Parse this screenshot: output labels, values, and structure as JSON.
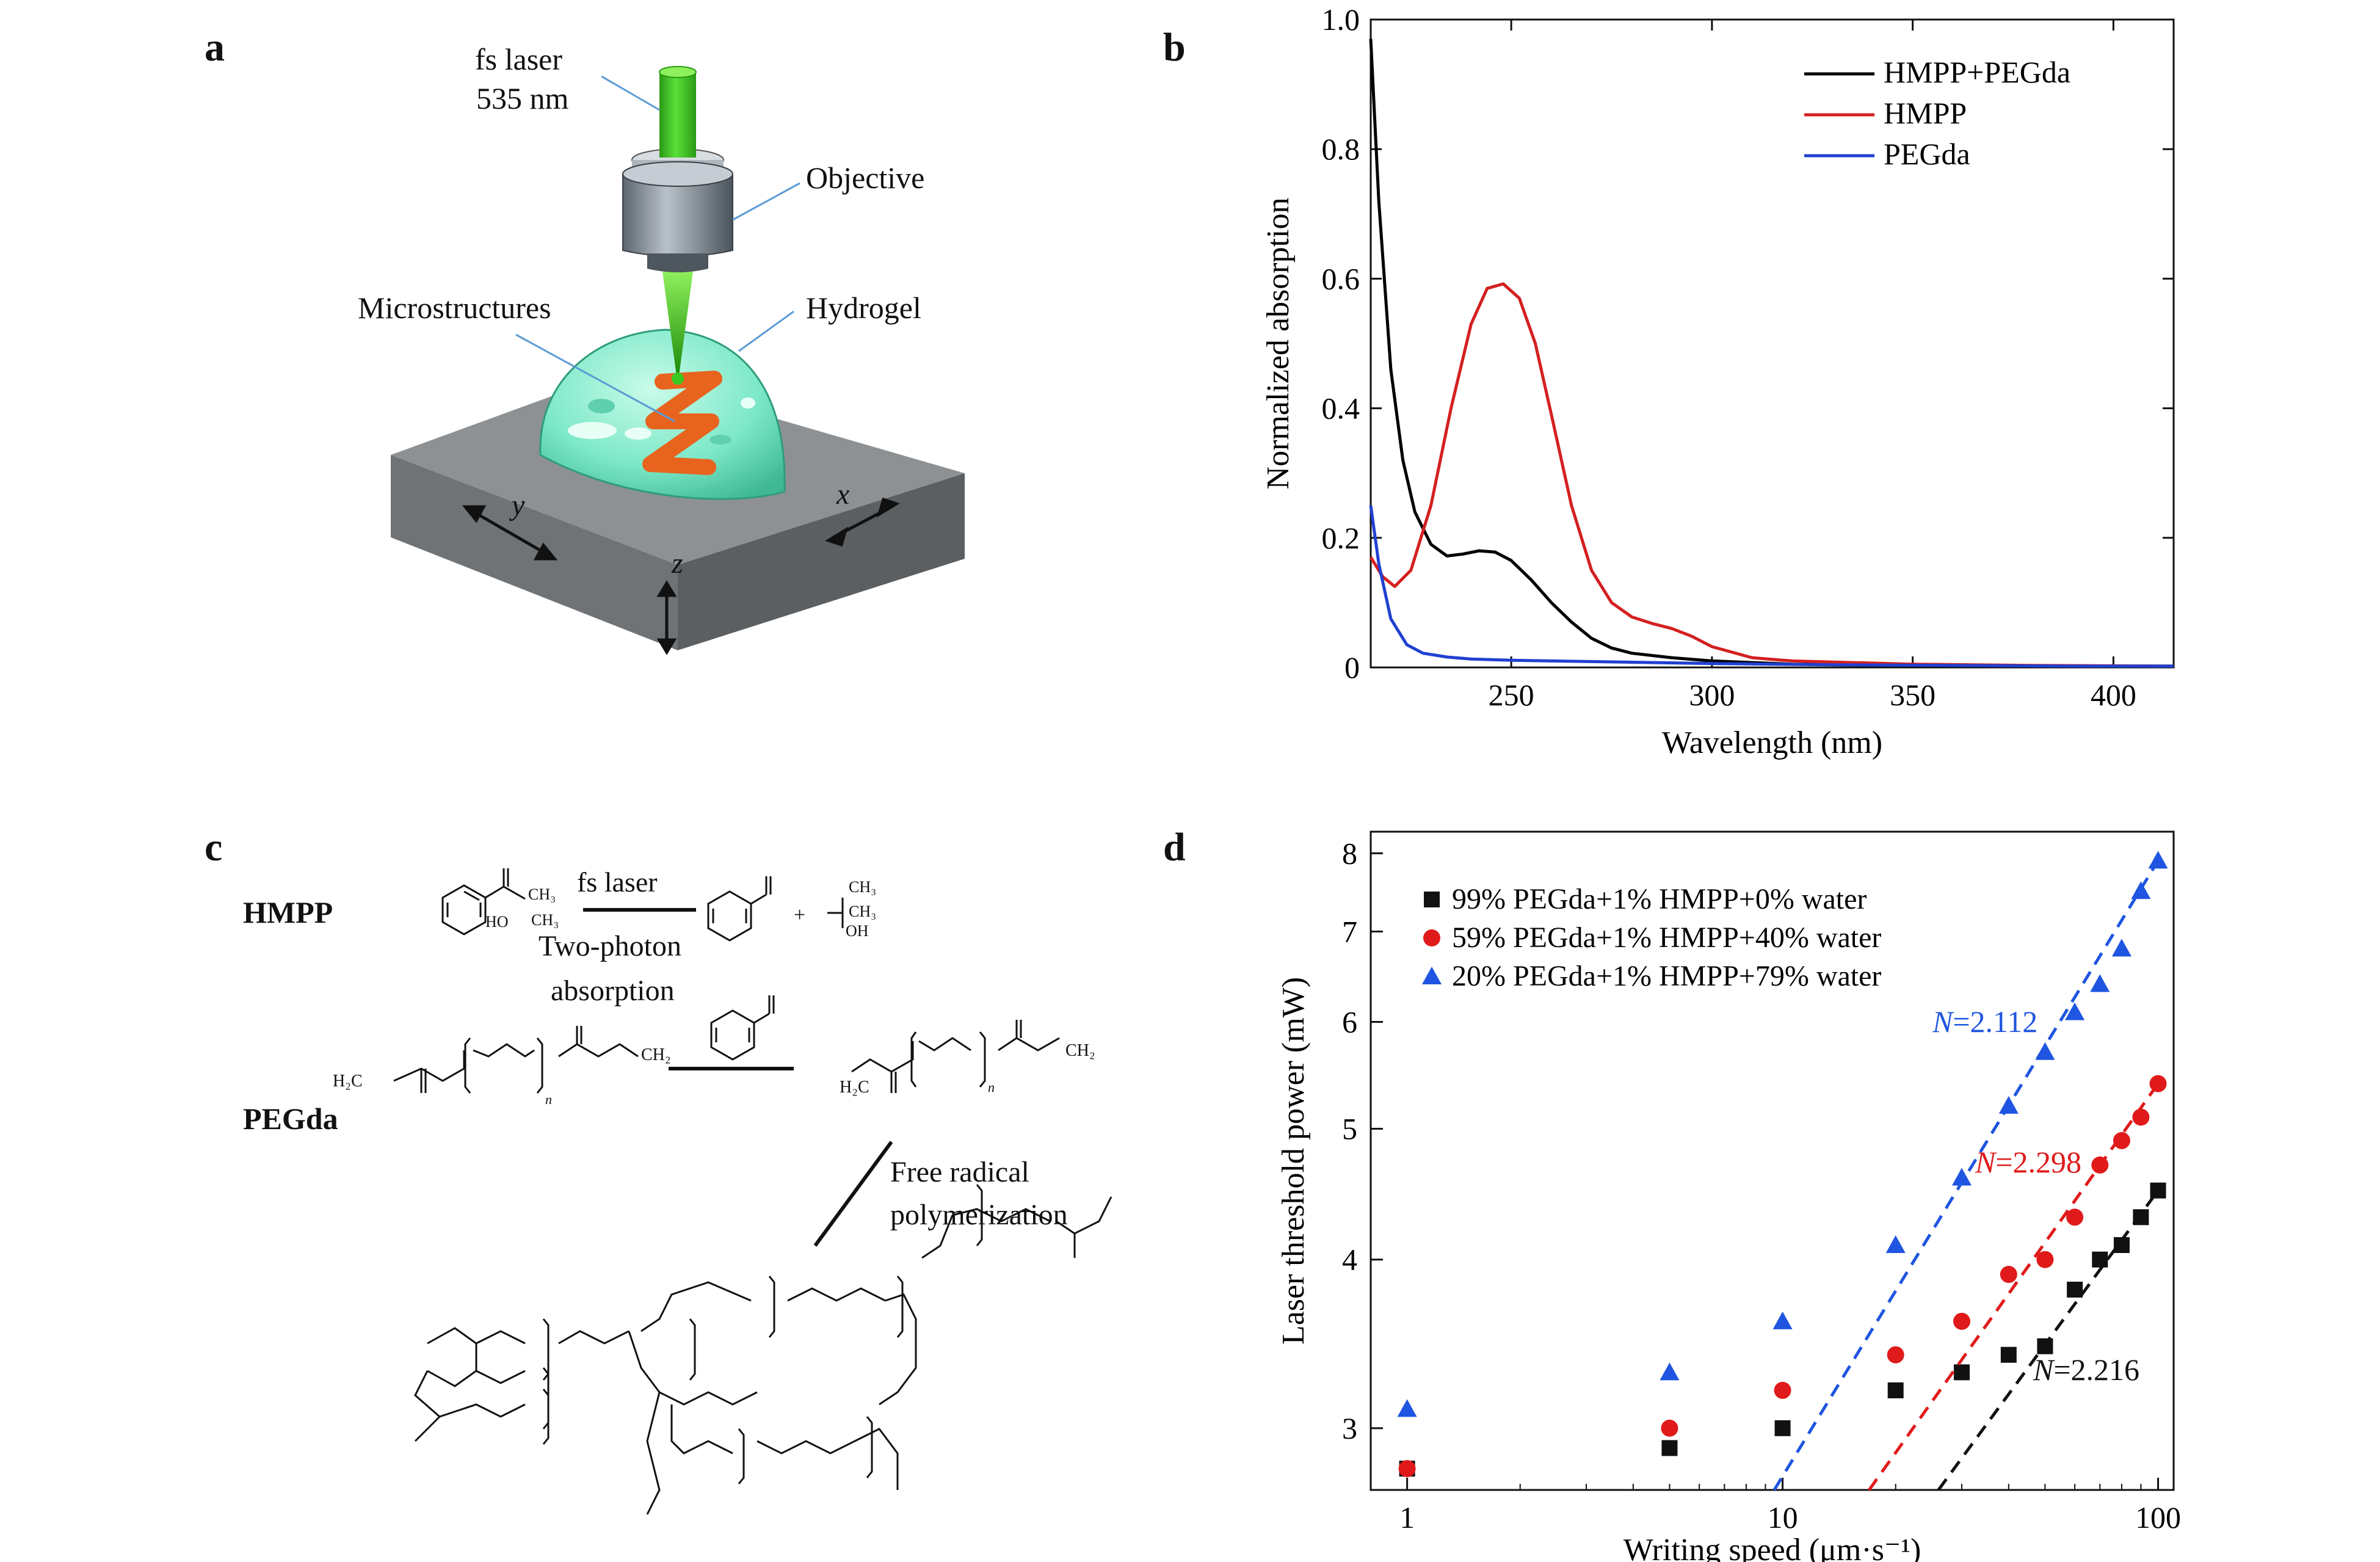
{
  "panels": {
    "a": {
      "letter": "a",
      "laser_label_line1": "fs laser",
      "laser_label_line2": "535 nm",
      "objective_label": "Objective",
      "microstructures_label": "Microstructures",
      "hydrogel_label": "Hydrogel",
      "axis_x": "x",
      "axis_y": "y",
      "axis_z": "z",
      "colors": {
        "laser": "#3cc81e",
        "hydrogel": "#7ce8c8",
        "structure": "#e8641e",
        "substrate": "#8a8d90"
      }
    },
    "b": {
      "letter": "b"
    },
    "c": {
      "letter": "c",
      "hmpp_label": "HMPP",
      "pegda_label": "PEGda",
      "fs_laser": "fs laser",
      "two_photon_line1": "Two-photon",
      "two_photon_line2": "absorption",
      "free_radical_line1": "Free radical",
      "free_radical_line2": "polymerization",
      "chem": {
        "ch3": "CH₃",
        "ho": "HO",
        "oh": "OH",
        "h2c": "H₂C",
        "ch2": "CH₂",
        "o": "O",
        "n": "n",
        "plus": "+"
      }
    },
    "d": {
      "letter": "d"
    }
  },
  "chart_data": [
    {
      "type": "line",
      "panel": "b",
      "xlabel": "Wavelength (nm)",
      "ylabel": "Normalized absorption",
      "xlim": [
        215,
        415
      ],
      "ylim": [
        0,
        1.0
      ],
      "xticks": [
        "250",
        "300",
        "350",
        "400"
      ],
      "yticks": [
        "0",
        "0.2",
        "0.4",
        "0.6",
        "0.8",
        "1.0"
      ],
      "legend_position": "top-right",
      "series": [
        {
          "name": "HMPP+PEGda",
          "color": "#000000",
          "x": [
            215,
            217,
            220,
            223,
            226,
            230,
            234,
            238,
            242,
            246,
            250,
            255,
            260,
            265,
            270,
            275,
            280,
            290,
            300,
            320,
            350,
            380,
            415
          ],
          "y": [
            0.97,
            0.72,
            0.46,
            0.32,
            0.24,
            0.19,
            0.172,
            0.175,
            0.18,
            0.178,
            0.165,
            0.135,
            0.1,
            0.07,
            0.045,
            0.03,
            0.022,
            0.015,
            0.01,
            0.005,
            0.003,
            0.002,
            0.002
          ]
        },
        {
          "name": "HMPP",
          "color": "#d42020",
          "x": [
            215,
            218,
            221,
            225,
            230,
            235,
            240,
            244,
            248,
            252,
            256,
            260,
            265,
            270,
            275,
            280,
            285,
            290,
            295,
            300,
            310,
            320,
            350,
            380,
            415
          ],
          "y": [
            0.17,
            0.14,
            0.125,
            0.15,
            0.25,
            0.4,
            0.53,
            0.585,
            0.592,
            0.57,
            0.5,
            0.39,
            0.25,
            0.15,
            0.1,
            0.078,
            0.068,
            0.06,
            0.048,
            0.032,
            0.015,
            0.01,
            0.005,
            0.003,
            0.002
          ]
        },
        {
          "name": "PEGda",
          "color": "#2040d0",
          "x": [
            215,
            217,
            220,
            224,
            228,
            234,
            240,
            250,
            260,
            280,
            300,
            330,
            360,
            390,
            415
          ],
          "y": [
            0.25,
            0.16,
            0.075,
            0.035,
            0.022,
            0.016,
            0.013,
            0.011,
            0.01,
            0.008,
            0.006,
            0.004,
            0.003,
            0.002,
            0.002
          ]
        }
      ]
    },
    {
      "type": "scatter",
      "panel": "d",
      "xlabel": "Writing speed (μm·s⁻¹)",
      "ylabel": "Laser threshold power (mW)",
      "xscale": "log",
      "yscale": "log",
      "xlim": [
        0.8,
        110
      ],
      "ylim": [
        2.7,
        8.3
      ],
      "xticks": [
        "1",
        "10",
        "100"
      ],
      "yticks": [
        "3",
        "4",
        "5",
        "6",
        "7",
        "8"
      ],
      "legend_position": "top-left",
      "series": [
        {
          "name": "99% PEGda+1% HMPP+0% water",
          "color": "#111111",
          "marker": "square",
          "x": [
            1,
            5,
            10,
            20,
            30,
            40,
            50,
            60,
            70,
            80,
            90,
            100
          ],
          "y": [
            2.8,
            2.9,
            3.0,
            3.2,
            3.3,
            3.4,
            3.45,
            3.8,
            4.0,
            4.1,
            4.3,
            4.5
          ],
          "fit": {
            "label": "N=2.216",
            "N": "2.216",
            "x": [
              26,
              100
            ],
            "y": [
              2.7,
              4.5
            ]
          }
        },
        {
          "name": "59% PEGda+1% HMPP+40% water",
          "color": "#e01a1a",
          "marker": "circle",
          "x": [
            1,
            5,
            10,
            20,
            30,
            40,
            50,
            60,
            70,
            80,
            90,
            100
          ],
          "y": [
            2.8,
            3.0,
            3.2,
            3.4,
            3.6,
            3.9,
            4.0,
            4.3,
            4.7,
            4.9,
            5.1,
            5.4
          ],
          "fit": {
            "label": "N=2.298",
            "N": "2.298",
            "x": [
              17,
              100
            ],
            "y": [
              2.7,
              5.4
            ]
          }
        },
        {
          "name": "20% PEGda+1% HMPP+79% water",
          "color": "#1f55e0",
          "marker": "triangle",
          "x": [
            1,
            5,
            10,
            20,
            30,
            40,
            50,
            60,
            70,
            80,
            90,
            100
          ],
          "y": [
            3.1,
            3.3,
            3.6,
            4.1,
            4.6,
            5.2,
            5.7,
            6.1,
            6.4,
            6.8,
            7.5,
            7.9
          ],
          "fit": {
            "label": "N=2.112",
            "N": "2.112",
            "x": [
              9.5,
              100
            ],
            "y": [
              2.7,
              7.9
            ]
          }
        }
      ]
    }
  ]
}
